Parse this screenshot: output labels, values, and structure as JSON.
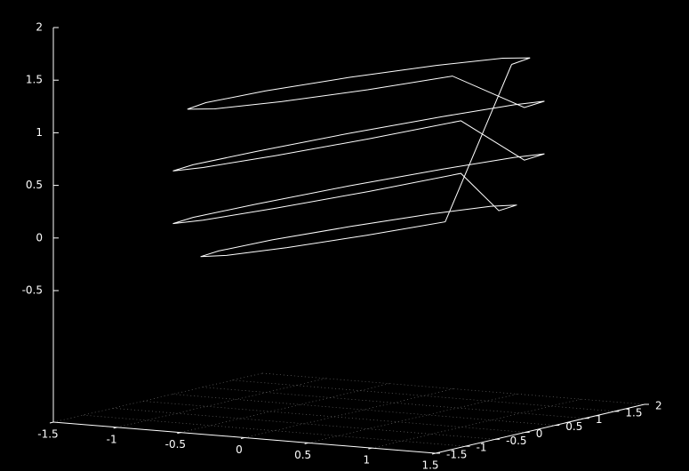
{
  "chart_data": {
    "type": "line3d",
    "grid": true,
    "xlim": [
      -1.5,
      1.5
    ],
    "xticks": [
      -1.5,
      -1,
      -0.5,
      0,
      0.5,
      1,
      1.5
    ],
    "ylim": [
      -1.5,
      2
    ],
    "yticks": [
      -1.5,
      -1,
      -0.5,
      0,
      0.5,
      1,
      1.5,
      2
    ],
    "zlim": [
      -1.75,
      2
    ],
    "zticks": [
      -0.5,
      0,
      0.5,
      1,
      1.5,
      2
    ],
    "series": [
      {
        "color": "#ffffff",
        "x": [
          1.3,
          1.14,
          0.7,
          0.1,
          -0.5,
          -0.94,
          -1.1,
          -0.94,
          -0.5,
          0.1,
          0.7,
          1.14,
          1.4,
          1.23,
          0.75,
          0.1,
          -0.55,
          -1.03,
          -1.2,
          -1.03,
          -0.55,
          0.1,
          0.75,
          1.23,
          1.4,
          1.23,
          0.75,
          0.1,
          -0.55,
          -1.03,
          -1.2,
          -1.03,
          -0.55,
          0.1,
          0.75,
          1.23,
          1.2,
          1.06,
          0.65,
          0.1,
          -0.45,
          -0.86,
          -1,
          -0.86,
          -0.45,
          0.1,
          0.65,
          1.06,
          1.3
        ],
        "y": [
          0.2,
          0.85,
          1.33,
          1.5,
          1.33,
          0.85,
          0.2,
          -0.45,
          -0.93,
          -1.1,
          -0.93,
          -0.45,
          0.2,
          0.9,
          1.42,
          1.6,
          1.42,
          0.9,
          0.2,
          -0.5,
          -1.02,
          -1.2,
          -1.02,
          -0.5,
          0.2,
          0.9,
          1.42,
          1.6,
          1.42,
          0.9,
          0.2,
          -0.5,
          -1.02,
          -1.2,
          -1.02,
          -0.5,
          0.2,
          0.8,
          1.24,
          1.4,
          1.24,
          0.8,
          0.2,
          -0.4,
          -0.84,
          -1,
          -0.84,
          -0.4,
          0.2
        ],
        "z": [
          1.7,
          1.66,
          1.55,
          1.4,
          1.25,
          1.14,
          1.1,
          1.14,
          1.25,
          1.4,
          1.55,
          1.66,
          1.3,
          1.25,
          1.1,
          0.9,
          0.7,
          0.55,
          0.5,
          0.55,
          0.7,
          0.9,
          1.1,
          1.25,
          0.8,
          0.75,
          0.6,
          0.4,
          0.2,
          0.05,
          0,
          0.05,
          0.2,
          0.4,
          0.6,
          0.75,
          0.3,
          0.26,
          0.15,
          0,
          -0.15,
          -0.26,
          -0.3,
          -0.26,
          -0.15,
          0,
          0.15,
          0.26,
          1.7
        ]
      }
    ]
  }
}
